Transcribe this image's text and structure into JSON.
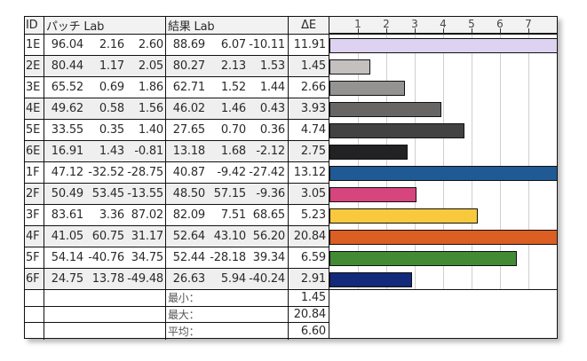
{
  "table": {
    "headers": {
      "id": "ID",
      "patch": "パッチ Lab",
      "result": "結果 Lab",
      "delta_e": "ΔE"
    },
    "rows": [
      {
        "id": "1E",
        "patch": [
          "96.04",
          "2.16",
          "2.60"
        ],
        "result": [
          "88.69",
          "6.07",
          "-10.11"
        ],
        "delta_e": "11.91",
        "color": "#ddd3f0"
      },
      {
        "id": "2E",
        "patch": [
          "80.44",
          "1.17",
          "2.05"
        ],
        "result": [
          "80.27",
          "2.13",
          "1.53"
        ],
        "delta_e": "1.45",
        "color": "#c3c0bf"
      },
      {
        "id": "3E",
        "patch": [
          "65.52",
          "0.69",
          "1.86"
        ],
        "result": [
          "62.71",
          "1.52",
          "1.44"
        ],
        "delta_e": "2.66",
        "color": "#959392"
      },
      {
        "id": "4E",
        "patch": [
          "49.62",
          "0.58",
          "1.56"
        ],
        "result": [
          "46.02",
          "1.46",
          "0.43"
        ],
        "delta_e": "3.93",
        "color": "#676665"
      },
      {
        "id": "5E",
        "patch": [
          "33.55",
          "0.35",
          "1.40"
        ],
        "result": [
          "27.65",
          "0.70",
          "0.36"
        ],
        "delta_e": "4.74",
        "color": "#424242"
      },
      {
        "id": "6E",
        "patch": [
          "16.91",
          "1.43",
          "-0.81"
        ],
        "result": [
          "13.18",
          "1.68",
          "-2.12"
        ],
        "delta_e": "2.75",
        "color": "#222224"
      },
      {
        "id": "1F",
        "patch": [
          "47.12",
          "-32.52",
          "-28.75"
        ],
        "result": [
          "40.87",
          "-9.42",
          "-27.42"
        ],
        "delta_e": "13.12",
        "color": "#1f5a94"
      },
      {
        "id": "2F",
        "patch": [
          "50.49",
          "53.45",
          "-13.55"
        ],
        "result": [
          "48.50",
          "57.15",
          "-9.36"
        ],
        "delta_e": "3.05",
        "color": "#d6457e"
      },
      {
        "id": "3F",
        "patch": [
          "83.61",
          "3.36",
          "87.02"
        ],
        "result": [
          "82.09",
          "7.51",
          "68.65"
        ],
        "delta_e": "5.23",
        "color": "#f8c93c"
      },
      {
        "id": "4F",
        "patch": [
          "41.05",
          "60.75",
          "31.17"
        ],
        "result": [
          "52.64",
          "43.10",
          "56.20"
        ],
        "delta_e": "20.84",
        "color": "#db5e22"
      },
      {
        "id": "5F",
        "patch": [
          "54.14",
          "-40.76",
          "34.75"
        ],
        "result": [
          "52.44",
          "-28.18",
          "39.34"
        ],
        "delta_e": "6.59",
        "color": "#438a35"
      },
      {
        "id": "6F",
        "patch": [
          "24.75",
          "13.78",
          "-49.48"
        ],
        "result": [
          "26.63",
          "5.94",
          "-40.24"
        ],
        "delta_e": "2.91",
        "color": "#13297a"
      }
    ],
    "summary": [
      {
        "label": "最小：",
        "value": "1.45"
      },
      {
        "label": "最大：",
        "value": "20.84"
      },
      {
        "label": "平均：",
        "value": "6.60"
      }
    ]
  },
  "chart_data": {
    "type": "bar",
    "orientation": "horizontal",
    "title": "",
    "xlabel": "ΔE",
    "ylabel": "",
    "categories": [
      "1E",
      "2E",
      "3E",
      "4E",
      "5E",
      "6E",
      "1F",
      "2F",
      "3F",
      "4F",
      "5F",
      "6F"
    ],
    "values": [
      11.91,
      1.45,
      2.66,
      3.93,
      4.74,
      2.75,
      13.12,
      3.05,
      5.23,
      20.84,
      6.59,
      2.91
    ],
    "bar_colors": [
      "#ddd3f0",
      "#c3c0bf",
      "#959392",
      "#676665",
      "#424242",
      "#222224",
      "#1f5a94",
      "#d6457e",
      "#f8c93c",
      "#db5e22",
      "#438a35",
      "#13297a"
    ],
    "tick_labels": [
      "1",
      "2",
      "3",
      "4",
      "5",
      "6",
      "7"
    ],
    "xlim": [
      0,
      8
    ],
    "grid": true,
    "legend": "none",
    "clipped_bars": [
      "1E",
      "1F",
      "4F"
    ]
  }
}
